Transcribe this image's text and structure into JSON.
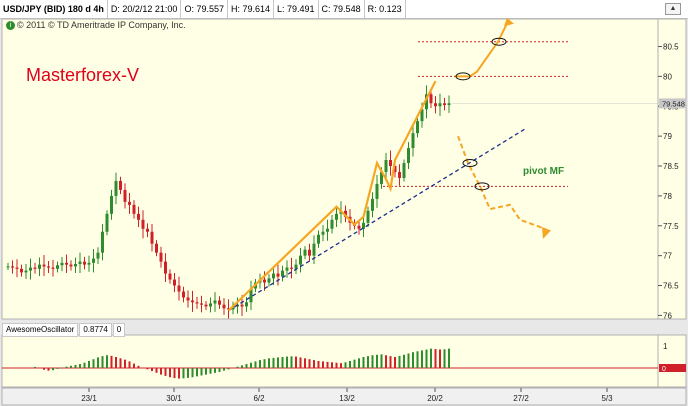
{
  "header": {
    "symbol": "USD/JPY (BID) 180 d 4h",
    "date": "D: 20/2/12 21:00",
    "open": "O: 79.557",
    "high": "H: 79.614",
    "low": "L: 79.491",
    "close": "C: 79.548",
    "range": "R: 0.123"
  },
  "copyright": "© 2011 © TD Ameritrade IP Company, Inc.",
  "brand": "Masterforex-V",
  "annotations": {
    "pivot_label": "pivot MF"
  },
  "oscillator": {
    "name": "AwesomeOscillator",
    "value": "0.8774",
    "zero": "0",
    "axis_top": "1"
  },
  "colors": {
    "up": "#2e8b2e",
    "down": "#d0202a",
    "price_tag": "#c8c8c8",
    "pattern": "#f5a623",
    "trendline": "#1c2d8c",
    "pivot_line": "#d0202a",
    "background": "#ffffe6"
  },
  "chart_data": {
    "type": "candlestick",
    "title": "USD/JPY (BID) 180 d 4h",
    "x_ticks": [
      "23/1",
      "30/1",
      "6/2",
      "13/2",
      "20/2",
      "27/2",
      "5/3"
    ],
    "y_ticks": [
      76,
      76.5,
      77,
      77.5,
      78,
      78.5,
      79,
      79.5,
      80,
      80.5
    ],
    "ylim": [
      75.94,
      80.96
    ],
    "last_price": "79.548",
    "pivot_level": 78.16,
    "resistance_levels": [
      80.0,
      80.58
    ],
    "grid": false,
    "close_series": [
      76.82,
      76.8,
      76.78,
      76.72,
      76.75,
      76.8,
      76.78,
      76.85,
      76.82,
      76.8,
      76.78,
      76.84,
      76.88,
      76.85,
      76.82,
      76.86,
      76.9,
      76.85,
      76.88,
      76.95,
      77.05,
      77.4,
      77.7,
      78.0,
      78.25,
      78.1,
      77.9,
      77.85,
      77.7,
      77.6,
      77.45,
      77.4,
      77.2,
      77.05,
      76.9,
      76.7,
      76.6,
      76.5,
      76.4,
      76.3,
      76.25,
      76.22,
      76.2,
      76.18,
      76.15,
      76.2,
      76.25,
      76.18,
      76.12,
      76.1,
      76.15,
      76.18,
      76.15,
      76.22,
      76.45,
      76.55,
      76.6,
      76.55,
      76.62,
      76.7,
      76.65,
      76.75,
      76.8,
      76.78,
      76.85,
      77.0,
      77.1,
      77.0,
      77.2,
      77.35,
      77.4,
      77.45,
      77.6,
      77.7,
      77.75,
      77.65,
      77.55,
      77.5,
      77.45,
      77.55,
      77.75,
      77.95,
      78.2,
      78.4,
      78.6,
      78.5,
      78.4,
      78.3,
      78.55,
      78.8,
      79.05,
      79.25,
      79.45,
      79.7,
      79.55,
      79.5,
      79.55,
      79.52,
      79.55
    ],
    "awesome_oscillator": [
      0.05,
      -0.02,
      -0.08,
      -0.12,
      -0.1,
      -0.04,
      0.02,
      0.06,
      0.1,
      0.14,
      0.18,
      0.24,
      0.32,
      0.4,
      0.48,
      0.54,
      0.58,
      0.55,
      0.5,
      0.44,
      0.38,
      0.3,
      0.2,
      0.1,
      0.02,
      -0.06,
      -0.14,
      -0.22,
      -0.3,
      -0.36,
      -0.42,
      -0.46,
      -0.48,
      -0.47,
      -0.45,
      -0.42,
      -0.38,
      -0.34,
      -0.3,
      -0.26,
      -0.22,
      -0.18,
      -0.12,
      -0.06,
      0.0,
      0.06,
      0.12,
      0.18,
      0.24,
      0.3,
      0.36,
      0.4,
      0.44,
      0.46,
      0.48,
      0.5,
      0.52,
      0.53,
      0.52,
      0.48,
      0.44,
      0.4,
      0.36,
      0.32,
      0.3,
      0.28,
      0.26,
      0.24,
      0.22,
      0.26,
      0.32,
      0.38,
      0.44,
      0.5,
      0.54,
      0.58,
      0.6,
      0.62,
      0.58,
      0.54,
      0.5,
      0.55,
      0.6,
      0.66,
      0.72,
      0.76,
      0.8,
      0.84,
      0.88,
      0.86,
      0.84,
      0.85,
      0.88
    ]
  }
}
